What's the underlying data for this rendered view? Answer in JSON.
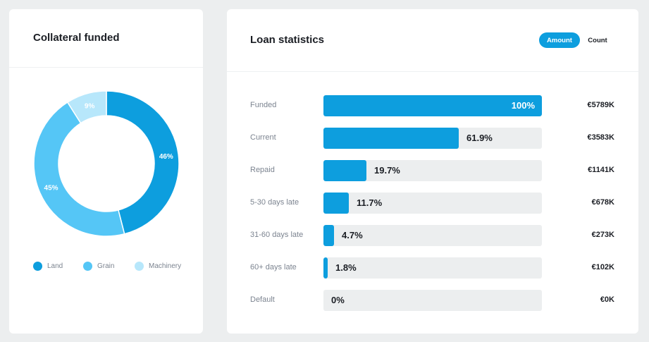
{
  "collateral": {
    "title": "Collateral funded",
    "segments": [
      {
        "name": "Land",
        "percent": 46,
        "label": "46%",
        "color": "#0d9ede"
      },
      {
        "name": "Grain",
        "percent": 45,
        "label": "45%",
        "color": "#55c6f6"
      },
      {
        "name": "Machinery",
        "percent": 9,
        "label": "9%",
        "color": "#b7e7fb"
      }
    ]
  },
  "loan_stats": {
    "title": "Loan statistics",
    "toggle": {
      "amount_label": "Amount",
      "count_label": "Count",
      "active": "Amount"
    },
    "rows": [
      {
        "label": "Funded",
        "percent": 100,
        "percent_label": "100%",
        "amount": "€5789K"
      },
      {
        "label": "Current",
        "percent": 61.9,
        "percent_label": "61.9%",
        "amount": "€3583K"
      },
      {
        "label": "Repaid",
        "percent": 19.7,
        "percent_label": "19.7%",
        "amount": "€1141K"
      },
      {
        "label": "5-30 days late",
        "percent": 11.7,
        "percent_label": "11.7%",
        "amount": "€678K"
      },
      {
        "label": "31-60 days late",
        "percent": 4.7,
        "percent_label": "4.7%",
        "amount": "€273K"
      },
      {
        "label": "60+ days late",
        "percent": 1.8,
        "percent_label": "1.8%",
        "amount": "€102K"
      },
      {
        "label": "Default",
        "percent": 0,
        "percent_label": "0%",
        "amount": "€0K"
      }
    ]
  },
  "chart_data": [
    {
      "type": "pie",
      "title": "Collateral funded",
      "categories": [
        "Land",
        "Grain",
        "Machinery"
      ],
      "values": [
        46,
        45,
        9
      ]
    },
    {
      "type": "bar",
      "title": "Loan statistics",
      "categories": [
        "Funded",
        "Current",
        "Repaid",
        "5-30 days late",
        "31-60 days late",
        "60+ days late",
        "Default"
      ],
      "values": [
        100,
        61.9,
        19.7,
        11.7,
        4.7,
        1.8,
        0
      ],
      "amounts": [
        "€5789K",
        "€3583K",
        "€1141K",
        "€678K",
        "€273K",
        "€102K",
        "€0K"
      ]
    }
  ]
}
